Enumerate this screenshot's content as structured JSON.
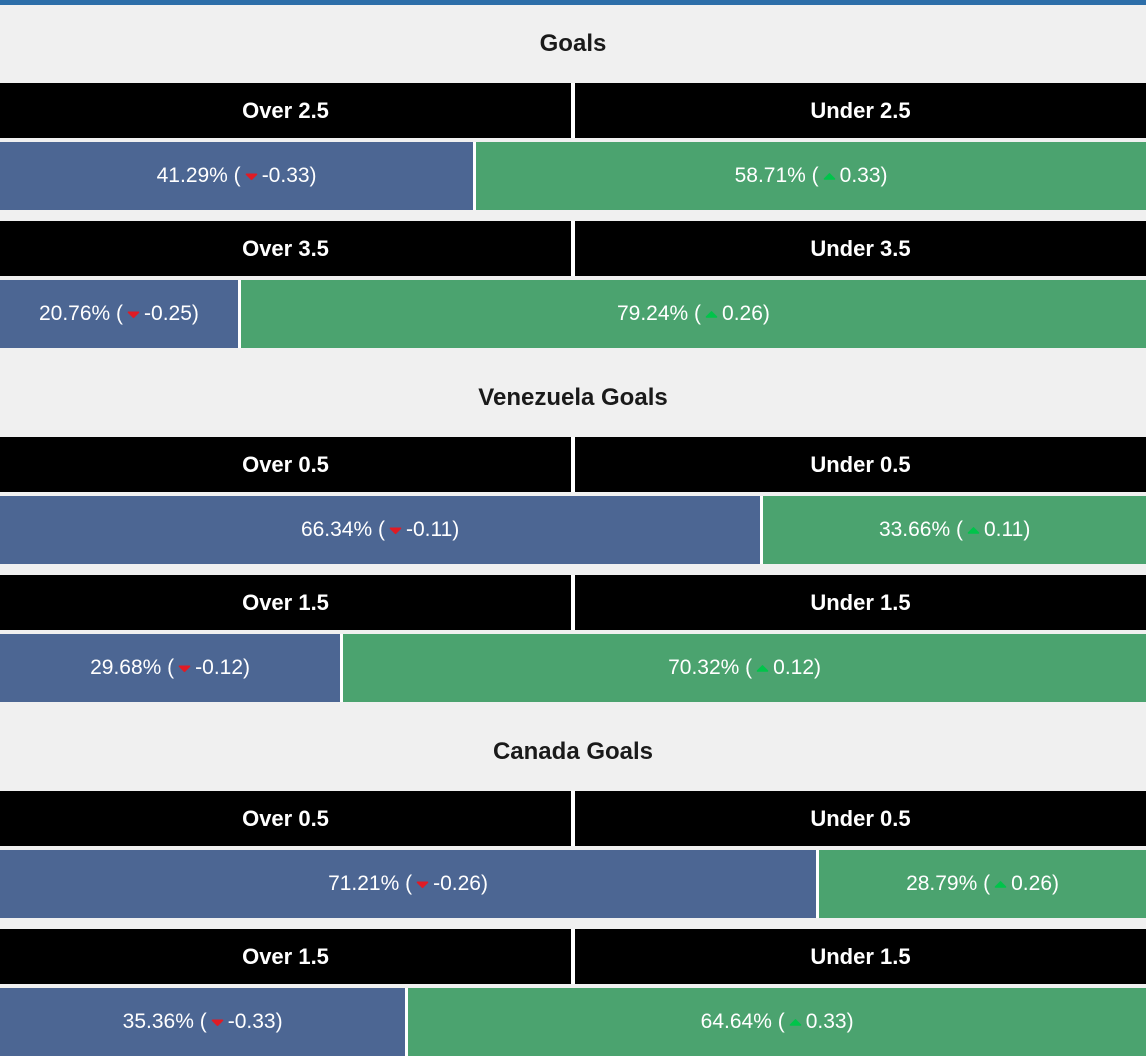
{
  "colors": {
    "page_background": "#f0f0f0",
    "top_border": "#2d6ea9",
    "over_bar": "#4c6693",
    "under_bar": "#4ba36f",
    "down_arrow": "#e01b24",
    "up_arrow": "#00c44a",
    "header_background": "#000000",
    "header_text": "#ffffff",
    "bar_text": "#ffffff",
    "title_text": "#1a1a1a"
  },
  "chart_data": [
    {
      "type": "bar",
      "title": "Goals",
      "orientation": "horizontal-stacked",
      "xlim": [
        0,
        100
      ],
      "legend": "none",
      "rows": [
        {
          "over_label": "Over 2.5",
          "under_label": "Under 2.5",
          "over_value": 41.29,
          "under_value": 58.71,
          "over": {
            "pct": "41.29%",
            "delta": "-0.33",
            "direction": "down"
          },
          "under": {
            "pct": "58.71%",
            "delta": "0.33",
            "direction": "up"
          }
        },
        {
          "over_label": "Over 3.5",
          "under_label": "Under 3.5",
          "over_value": 20.76,
          "under_value": 79.24,
          "over": {
            "pct": "20.76%",
            "delta": "-0.25",
            "direction": "down"
          },
          "under": {
            "pct": "79.24%",
            "delta": "0.26",
            "direction": "up"
          }
        }
      ]
    },
    {
      "type": "bar",
      "title": "Venezuela Goals",
      "orientation": "horizontal-stacked",
      "xlim": [
        0,
        100
      ],
      "legend": "none",
      "rows": [
        {
          "over_label": "Over 0.5",
          "under_label": "Under 0.5",
          "over_value": 66.34,
          "under_value": 33.66,
          "over": {
            "pct": "66.34%",
            "delta": "-0.11",
            "direction": "down"
          },
          "under": {
            "pct": "33.66%",
            "delta": "0.11",
            "direction": "up"
          }
        },
        {
          "over_label": "Over 1.5",
          "under_label": "Under 1.5",
          "over_value": 29.68,
          "under_value": 70.32,
          "over": {
            "pct": "29.68%",
            "delta": "-0.12",
            "direction": "down"
          },
          "under": {
            "pct": "70.32%",
            "delta": "0.12",
            "direction": "up"
          }
        }
      ]
    },
    {
      "type": "bar",
      "title": "Canada Goals",
      "orientation": "horizontal-stacked",
      "xlim": [
        0,
        100
      ],
      "legend": "none",
      "rows": [
        {
          "over_label": "Over 0.5",
          "under_label": "Under 0.5",
          "over_value": 71.21,
          "under_value": 28.79,
          "over": {
            "pct": "71.21%",
            "delta": "-0.26",
            "direction": "down"
          },
          "under": {
            "pct": "28.79%",
            "delta": "0.26",
            "direction": "up"
          }
        },
        {
          "over_label": "Over 1.5",
          "under_label": "Under 1.5",
          "over_value": 35.36,
          "under_value": 64.64,
          "over": {
            "pct": "35.36%",
            "delta": "-0.33",
            "direction": "down"
          },
          "under": {
            "pct": "64.64%",
            "delta": "0.33",
            "direction": "up"
          }
        }
      ]
    }
  ]
}
